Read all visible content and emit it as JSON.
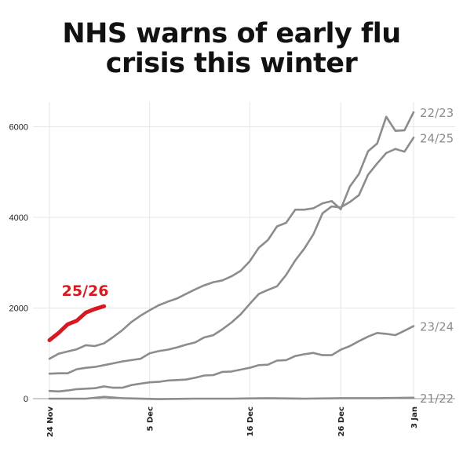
{
  "title_lines": [
    "NHS warns of early flu",
    "crisis this winter"
  ],
  "chart_data": {
    "type": "line",
    "title": "NHS warns of early flu crisis this winter",
    "xlabel": "",
    "ylabel": "",
    "x_ticks": [
      "24 Nov",
      "5 Dec",
      "16 Dec",
      "26 Dec",
      "3 Jan"
    ],
    "x_tick_days": [
      0,
      11,
      22,
      32,
      40
    ],
    "y_ticks": [
      "0",
      "2000",
      "4000",
      "6000"
    ],
    "y_tick_values": [
      0,
      2000,
      4000,
      6000
    ],
    "ylim": [
      0,
      6500
    ],
    "xlim": [
      0,
      40
    ],
    "grid": "horizontal",
    "colors": {
      "highlight": "#d71920",
      "other": "#8c8c8c",
      "grid": "#e6e6e6",
      "axis": "#999999"
    },
    "series": [
      {
        "name": "22/23",
        "color": "#8c8c8c",
        "x": [
          0,
          1,
          2,
          3,
          4,
          5,
          6,
          7,
          8,
          9,
          10,
          11,
          12,
          13,
          14,
          15,
          16,
          17,
          18,
          19,
          20,
          21,
          22,
          23,
          24,
          25,
          26,
          27,
          28,
          29,
          30,
          31,
          32,
          33,
          34,
          35,
          36,
          37,
          38,
          39,
          40
        ],
        "y": [
          880,
          990,
          1040,
          1090,
          1180,
          1160,
          1220,
          1360,
          1510,
          1690,
          1830,
          1950,
          2060,
          2140,
          2210,
          2310,
          2410,
          2500,
          2570,
          2610,
          2700,
          2820,
          3030,
          3330,
          3500,
          3800,
          3880,
          4170,
          4170,
          4200,
          4310,
          4360,
          4180,
          4680,
          4960,
          5460,
          5630,
          6220,
          5910,
          5920,
          6320
        ]
      },
      {
        "name": "24/25",
        "color": "#8c8c8c",
        "x": [
          0,
          1,
          2,
          3,
          4,
          5,
          6,
          7,
          8,
          9,
          10,
          11,
          12,
          13,
          14,
          15,
          16,
          17,
          18,
          19,
          20,
          21,
          22,
          23,
          24,
          25,
          26,
          27,
          28,
          29,
          30,
          31,
          32,
          33,
          34,
          35,
          36,
          37,
          38,
          39,
          40
        ],
        "y": [
          550,
          560,
          560,
          650,
          680,
          700,
          740,
          780,
          820,
          850,
          880,
          1000,
          1050,
          1080,
          1130,
          1190,
          1240,
          1350,
          1400,
          1530,
          1680,
          1860,
          2090,
          2310,
          2400,
          2480,
          2730,
          3050,
          3310,
          3630,
          4090,
          4240,
          4220,
          4340,
          4490,
          4940,
          5190,
          5420,
          5510,
          5450,
          5760
        ]
      },
      {
        "name": "23/24",
        "color": "#8c8c8c",
        "x": [
          0,
          1,
          2,
          3,
          4,
          5,
          6,
          7,
          8,
          9,
          10,
          11,
          12,
          13,
          14,
          15,
          16,
          17,
          18,
          19,
          20,
          21,
          22,
          23,
          24,
          25,
          26,
          27,
          28,
          29,
          30,
          31,
          32,
          33,
          34,
          35,
          36,
          37,
          38,
          39,
          40
        ],
        "y": [
          170,
          160,
          180,
          210,
          220,
          230,
          270,
          240,
          240,
          300,
          330,
          360,
          370,
          400,
          410,
          420,
          460,
          510,
          520,
          590,
          600,
          640,
          680,
          740,
          750,
          840,
          850,
          940,
          980,
          1010,
          960,
          960,
          1080,
          1160,
          1270,
          1370,
          1450,
          1430,
          1400,
          1500,
          1600
        ]
      },
      {
        "name": "21/22",
        "color": "#8c8c8c",
        "x": [
          0,
          4,
          6,
          8,
          12,
          16,
          20,
          24,
          28,
          32,
          36,
          40
        ],
        "y": [
          0,
          0,
          40,
          10,
          -10,
          0,
          0,
          10,
          0,
          10,
          10,
          20
        ]
      },
      {
        "name": "25/26",
        "color": "#d71920",
        "highlight": true,
        "x": [
          0,
          1,
          2,
          3,
          4,
          5,
          6
        ],
        "y": [
          1290,
          1450,
          1640,
          1720,
          1900,
          1980,
          2040
        ]
      }
    ]
  }
}
